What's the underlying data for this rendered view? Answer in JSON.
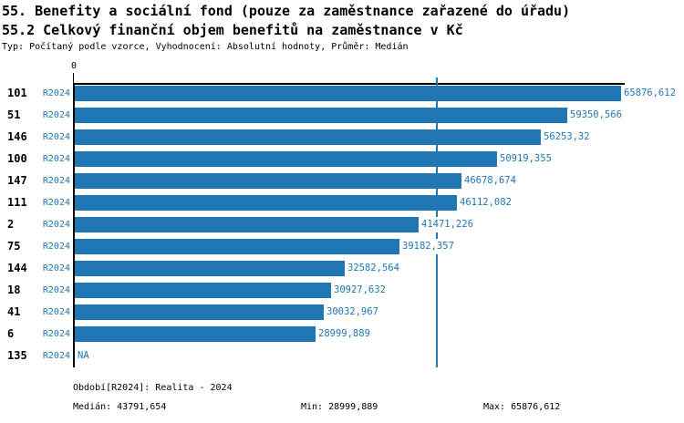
{
  "header": {
    "title1": "55. Benefity a sociální fond (pouze za zaměstnance zařazené do úřadu)",
    "title2": "55.2 Celkový finanční objem benefitů na zaměstnance v Kč",
    "meta": "Typ: Počítaný podle vzorce, Vyhodnocení: Absolutní hodnoty, Průměr: Medián"
  },
  "chart_data": {
    "type": "bar",
    "orientation": "horizontal",
    "title": "55.2 Celkový finanční objem benefitů na zaměstnance v Kč",
    "origin_tick_label": "0",
    "categories": [
      "101",
      "51",
      "146",
      "100",
      "147",
      "111",
      "2",
      "75",
      "144",
      "18",
      "41",
      "6",
      "135"
    ],
    "period_label": "R2024",
    "values": [
      65876.612,
      59350.566,
      56253.32,
      50919.355,
      46678.674,
      46112.082,
      41471.226,
      39182.357,
      32582.564,
      30927.632,
      30032.967,
      28999.889,
      null
    ],
    "value_labels": [
      "65876,612",
      "59350,566",
      "56253,32",
      "50919,355",
      "46678,674",
      "46112,082",
      "41471,226",
      "39182,357",
      "32582,564",
      "30927,632",
      "30032,967",
      "28999,889",
      "NA"
    ],
    "median_value": 43791.654,
    "xlim": [
      0,
      66500
    ],
    "bar_color": "#2077b4",
    "median_line_color": "#2379ad",
    "label_color": "#2077b4",
    "axis_color": "#000000"
  },
  "footer": {
    "period_info": "Období[R2024]: Realita - 2024",
    "median": "Medián: 43791,654",
    "min": "Min: 28999,889",
    "max": "Max: 65876,612",
    "text_color": "#1d6f96"
  }
}
